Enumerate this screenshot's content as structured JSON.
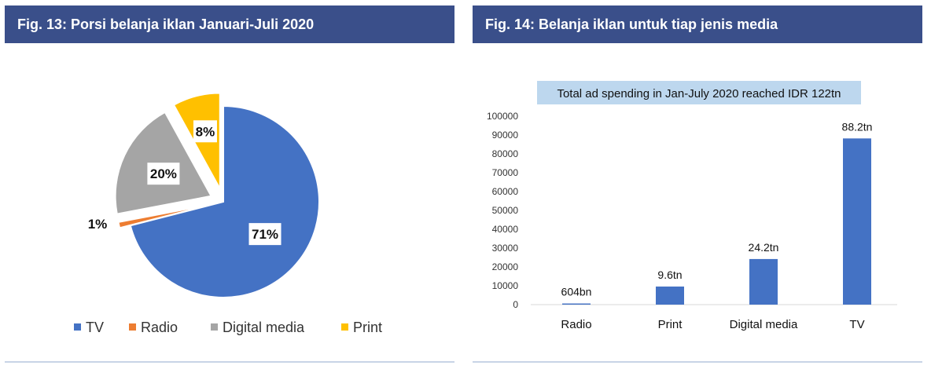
{
  "fig13": {
    "title": "Fig. 13: Porsi belanja iklan Januari-Juli 2020"
  },
  "fig14": {
    "title": "Fig. 14: Belanja iklan untuk tiap jenis media"
  },
  "colors": {
    "header_bg": "#3a4f8a",
    "tv": "#4472c4",
    "radio": "#ed7d31",
    "digital": "#a5a5a5",
    "print": "#ffc000",
    "bar": "#4472c4",
    "annotation_bg": "#bdd7ee"
  },
  "chart_data": [
    {
      "type": "pie",
      "slices": [
        {
          "name": "TV",
          "value": 71,
          "label": "71%",
          "color": "#4472c4"
        },
        {
          "name": "Radio",
          "value": 1,
          "label": "1%",
          "color": "#ed7d31"
        },
        {
          "name": "Digital media",
          "value": 20,
          "label": "20%",
          "color": "#a5a5a5"
        },
        {
          "name": "Print",
          "value": 8,
          "label": "8%",
          "color": "#ffc000"
        }
      ],
      "legend": [
        "TV",
        "Radio",
        "Digital media",
        "Print"
      ],
      "legend_position": "bottom",
      "exploded": true
    },
    {
      "type": "bar",
      "title": "Total ad spending in Jan-July 2020 reached IDR 122tn",
      "categories": [
        "Radio",
        "Print",
        "Digital media",
        "TV"
      ],
      "values": [
        604,
        9600,
        24200,
        88200
      ],
      "data_labels": [
        "604bn",
        "9.6tn",
        "24.2tn",
        "88.2tn"
      ],
      "yticks": [
        "100000",
        "90000",
        "80000",
        "70000",
        "60000",
        "50000",
        "40000",
        "30000",
        "20000",
        "10000",
        "0"
      ],
      "ylim": [
        0,
        100000
      ],
      "grid": false
    }
  ]
}
